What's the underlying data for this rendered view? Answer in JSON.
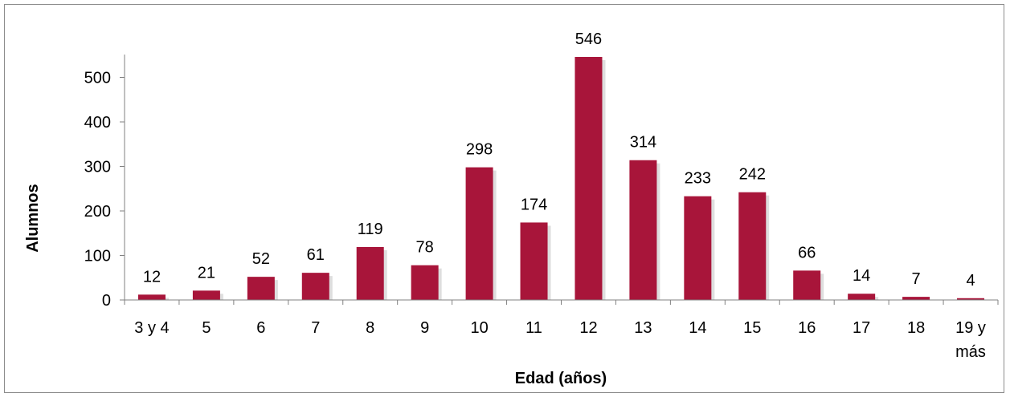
{
  "chart_data": {
    "type": "bar",
    "categories": [
      "3 y 4",
      "5",
      "6",
      "7",
      "8",
      "9",
      "10",
      "11",
      "12",
      "13",
      "14",
      "15",
      "16",
      "17",
      "18",
      "19 y más"
    ],
    "values": [
      12,
      21,
      52,
      61,
      119,
      78,
      298,
      174,
      546,
      314,
      233,
      242,
      66,
      14,
      7,
      4
    ],
    "title": "",
    "xlabel": "Edad (años)",
    "ylabel": "Alumnos",
    "ylim": [
      0,
      600
    ],
    "yticks": [
      0,
      100,
      200,
      300,
      400,
      500
    ],
    "grid": false,
    "legend": "none",
    "bar_color": "#a8153a",
    "shadow_color": "#c8c8c8"
  }
}
